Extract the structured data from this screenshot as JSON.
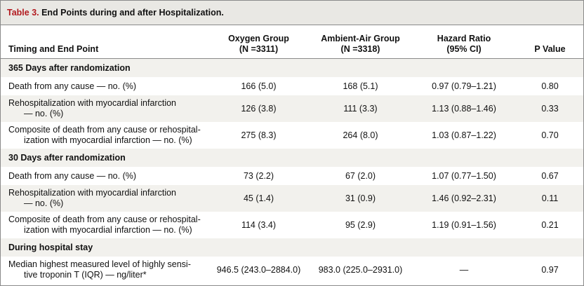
{
  "table": {
    "title_number": "Table 3.",
    "title_text": " End Points during and after Hospitalization.",
    "headers": {
      "col0": "Timing and End Point",
      "col1_line1": "Oxygen Group",
      "col1_line2": "(N =3311)",
      "col2_line1": "Ambient-Air Group",
      "col2_line2": "(N =3318)",
      "col3_line1": "Hazard Ratio",
      "col3_line2": "(95% CI)",
      "col4": "P Value"
    },
    "sections": [
      {
        "heading": "365 Days after randomization",
        "rows": [
          {
            "label1": "Death from any cause — no. (%)",
            "label2": "",
            "oxygen": "166 (5.0)",
            "ambient": "168 (5.1)",
            "hr": "0.97 (0.79–1.21)",
            "p": "0.80"
          },
          {
            "label1": "Rehospitalization with myocardial infarction",
            "label2": "— no. (%)",
            "oxygen": "126 (3.8)",
            "ambient": "111 (3.3)",
            "hr": "1.13 (0.88–1.46)",
            "p": "0.33"
          },
          {
            "label1": "Composite of death from any cause or rehospital-",
            "label2": "ization with myocardial infarction — no. (%)",
            "oxygen": "275 (8.3)",
            "ambient": "264 (8.0)",
            "hr": "1.03 (0.87–1.22)",
            "p": "0.70"
          }
        ]
      },
      {
        "heading": "30 Days after randomization",
        "rows": [
          {
            "label1": "Death from any cause — no. (%)",
            "label2": "",
            "oxygen": "73 (2.2)",
            "ambient": "67 (2.0)",
            "hr": "1.07 (0.77–1.50)",
            "p": "0.67"
          },
          {
            "label1": "Rehospitalization with myocardial infarction",
            "label2": "— no. (%)",
            "oxygen": "45 (1.4)",
            "ambient": "31 (0.9)",
            "hr": "1.46 (0.92–2.31)",
            "p": "0.11"
          },
          {
            "label1": "Composite of death from any cause or rehospital-",
            "label2": "ization with myocardial infarction — no. (%)",
            "oxygen": "114 (3.4)",
            "ambient": "95 (2.9)",
            "hr": "1.19 (0.91–1.56)",
            "p": "0.21"
          }
        ]
      },
      {
        "heading": "During hospital stay",
        "rows": [
          {
            "label1": "Median highest measured level of highly sensi-",
            "label2": "tive troponin T (IQR) — ng/liter*",
            "oxygen": "946.5 (243.0–2884.0)",
            "ambient": "983.0 (225.0–2931.0)",
            "hr": "—",
            "p": "0.97"
          }
        ]
      }
    ]
  }
}
